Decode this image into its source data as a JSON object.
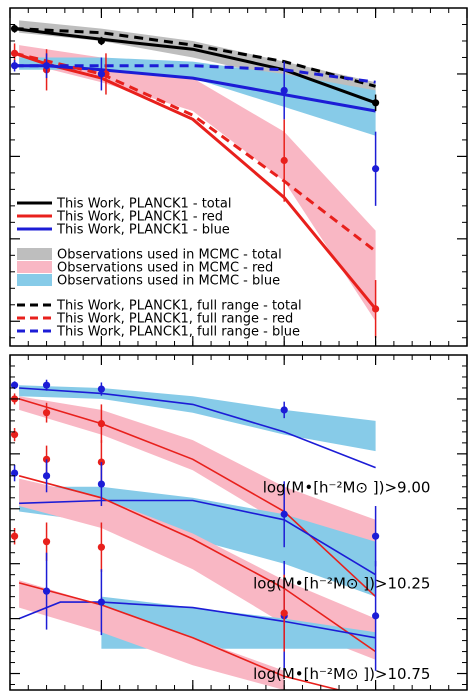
{
  "colors": {
    "total": "#000000",
    "red": "#e8201c",
    "blue": "#1c1cd6",
    "band_total": "#bebebe",
    "band_red": "#f9b7c4",
    "band_blue": "#87cbe8"
  },
  "chart_data": [
    {
      "type": "line",
      "panel": "top",
      "xlim": [
        0.0,
        5.0
      ],
      "ylim": [
        -5.3,
        -1.2
      ],
      "x_ticks": [
        0.0,
        1.0,
        2.0,
        3.0,
        4.0,
        5.0
      ],
      "grid": false,
      "legend_position": "bottom-left",
      "legend": [
        {
          "label": "This Work, PLANCK1 - total",
          "kind": "line",
          "color": "#000000",
          "dash": false
        },
        {
          "label": "This Work, PLANCK1 - red",
          "kind": "line",
          "color": "#e8201c",
          "dash": false
        },
        {
          "label": "This Work, PLANCK1 - blue",
          "kind": "line",
          "color": "#1c1cd6",
          "dash": false
        },
        {
          "label": "Observations used in MCMC - total",
          "kind": "band",
          "color": "#bebebe"
        },
        {
          "label": "Observations used in MCMC - red",
          "kind": "band",
          "color": "#f9b7c4"
        },
        {
          "label": "Observations used in MCMC - blue",
          "kind": "band",
          "color": "#87cbe8"
        },
        {
          "label": "This Work, PLANCK1, full range - total",
          "kind": "line",
          "color": "#000000",
          "dash": true
        },
        {
          "label": "This Work, PLANCK1, full range - red",
          "kind": "line",
          "color": "#e8201c",
          "dash": true
        },
        {
          "label": "This Work, PLANCK1, full range - blue",
          "kind": "line",
          "color": "#1c1cd6",
          "dash": true
        }
      ],
      "bands": [
        {
          "name": "total",
          "color": "#bebebe",
          "x": [
            0.1,
            1.0,
            2.0,
            3.0,
            4.0
          ],
          "low": [
            -1.5,
            -1.6,
            -1.8,
            -2.05,
            -2.4
          ],
          "high": [
            -1.35,
            -1.45,
            -1.6,
            -1.85,
            -2.1
          ]
        },
        {
          "name": "red",
          "color": "#f9b7c4",
          "x": [
            0.1,
            1.0,
            2.0,
            3.0,
            4.0
          ],
          "low": [
            -1.85,
            -2.1,
            -2.45,
            -3.3,
            -5.0
          ],
          "high": [
            -1.65,
            -1.8,
            -2.05,
            -2.7,
            -3.9
          ]
        },
        {
          "name": "blue",
          "color": "#87cbe8",
          "x": [
            0.1,
            1.0,
            2.0,
            3.0,
            4.0
          ],
          "low": [
            -1.95,
            -1.95,
            -2.05,
            -2.4,
            -2.75
          ],
          "high": [
            -1.8,
            -1.8,
            -1.85,
            -2.0,
            -2.2
          ]
        }
      ],
      "series": [
        {
          "name": "This Work, PLANCK1 - total",
          "color": "#000000",
          "dash": false,
          "x": [
            0.05,
            0.4,
            1.0,
            2.0,
            3.0,
            4.0
          ],
          "y": [
            -1.45,
            -1.5,
            -1.58,
            -1.7,
            -1.95,
            -2.35
          ]
        },
        {
          "name": "This Work, PLANCK1 - red",
          "color": "#e8201c",
          "dash": false,
          "x": [
            0.05,
            0.4,
            1.0,
            2.0,
            3.0,
            4.0
          ],
          "y": [
            -1.75,
            -1.88,
            -2.05,
            -2.55,
            -3.5,
            -4.85
          ]
        },
        {
          "name": "This Work, PLANCK1 - blue",
          "color": "#1c1cd6",
          "dash": false,
          "x": [
            0.05,
            0.4,
            1.0,
            2.0,
            3.0,
            4.0
          ],
          "y": [
            -1.9,
            -1.9,
            -1.95,
            -2.05,
            -2.25,
            -2.45
          ]
        },
        {
          "name": "This Work, PLANCK1, full range - total",
          "color": "#000000",
          "dash": true,
          "x": [
            0.05,
            1.0,
            2.0,
            3.0,
            4.0
          ],
          "y": [
            -1.45,
            -1.5,
            -1.65,
            -1.85,
            -2.15
          ]
        },
        {
          "name": "This Work, PLANCK1, full range - red",
          "color": "#e8201c",
          "dash": true,
          "x": [
            0.05,
            1.0,
            2.0,
            3.0,
            4.0
          ],
          "y": [
            -1.75,
            -2.0,
            -2.5,
            -3.3,
            -4.15
          ]
        },
        {
          "name": "This Work, PLANCK1, full range - blue",
          "color": "#1c1cd6",
          "dash": true,
          "x": [
            0.05,
            1.0,
            2.0,
            3.0,
            4.0
          ],
          "y": [
            -1.9,
            -1.9,
            -1.9,
            -1.95,
            -2.1
          ]
        }
      ],
      "points": [
        {
          "color": "#000000",
          "x": [
            0.05,
            1.0,
            4.0
          ],
          "y": [
            -1.45,
            -1.6,
            -2.35
          ],
          "err": [
            0.05,
            0.05,
            0.1
          ]
        },
        {
          "color": "#e8201c",
          "x": [
            0.05,
            0.4,
            1.05,
            3.0,
            4.0
          ],
          "y": [
            -1.75,
            -1.95,
            -2.0,
            -3.05,
            -4.85
          ],
          "err": [
            0.12,
            0.25,
            0.25,
            0.5,
            0.35
          ]
        },
        {
          "color": "#1c1cd6",
          "x": [
            0.05,
            0.4,
            1.0,
            3.0,
            4.0
          ],
          "y": [
            -1.9,
            -1.9,
            -2.0,
            -2.2,
            -3.15
          ],
          "err": [
            0.07,
            0.15,
            0.2,
            0.35,
            0.45
          ]
        }
      ]
    },
    {
      "type": "line",
      "panel": "bottom",
      "xlim": [
        0.0,
        5.0
      ],
      "ylim": [
        -7.3,
        -1.2
      ],
      "x_ticks": [
        0.0,
        1.0,
        2.0,
        3.0,
        4.0,
        5.0
      ],
      "grid": false,
      "annotations": [
        {
          "text": "log(M•[h⁻²M⊙ ])>9.00",
          "x": 4.6,
          "y": -3.7
        },
        {
          "text": "log(M•[h⁻²M⊙ ])>10.25",
          "x": 4.6,
          "y": -5.45
        },
        {
          "text": "log(M•[h⁻²M⊙ ])>10.75",
          "x": 4.6,
          "y": -7.1
        }
      ],
      "bands": [
        {
          "name": "blue >9.00",
          "color": "#87cbe8",
          "x": [
            0.1,
            1.0,
            2.0,
            3.0,
            4.0
          ],
          "low": [
            -1.95,
            -2.0,
            -2.25,
            -2.65,
            -2.95
          ],
          "high": [
            -1.75,
            -1.8,
            -1.95,
            -2.2,
            -2.4
          ]
        },
        {
          "name": "red >9.00",
          "color": "#f9b7c4",
          "x": [
            0.1,
            1.0,
            2.0,
            3.0,
            4.0
          ],
          "low": [
            -2.2,
            -2.65,
            -3.3,
            -4.3,
            -5.0
          ],
          "high": [
            -1.95,
            -2.2,
            -2.75,
            -3.6,
            -4.2
          ]
        },
        {
          "name": "blue >10.25",
          "color": "#87cbe8",
          "x": [
            0.1,
            1.0,
            2.0,
            3.0,
            4.0
          ],
          "low": [
            -4.05,
            -4.25,
            -4.55,
            -5.0,
            -5.6
          ],
          "high": [
            -3.6,
            -3.6,
            -3.8,
            -4.1,
            -4.6
          ]
        },
        {
          "name": "red >10.25",
          "color": "#f9b7c4",
          "x": [
            0.1,
            1.0,
            2.0,
            3.0,
            4.0
          ],
          "low": [
            -3.95,
            -4.35,
            -5.1,
            -6.1,
            -6.75
          ],
          "high": [
            -3.45,
            -3.8,
            -4.45,
            -5.3,
            -6.0
          ]
        },
        {
          "name": "blue >10.75",
          "color": "#87cbe8",
          "x": [
            1.0,
            2.0,
            3.0,
            4.0
          ],
          "low": [
            -6.55,
            -6.55,
            -6.55,
            -6.55
          ],
          "high": [
            -5.6,
            -5.8,
            -6.0,
            -6.25
          ]
        },
        {
          "name": "red >10.75",
          "color": "#f9b7c4",
          "x": [
            0.1,
            1.0,
            2.0,
            3.0
          ],
          "low": [
            -5.8,
            -6.25,
            -6.85,
            -7.3
          ],
          "high": [
            -5.3,
            -5.75,
            -6.35,
            -6.95
          ]
        }
      ],
      "series": [
        {
          "name": "blue >9.00",
          "color": "#1c1cd6",
          "x": [
            0.1,
            1.0,
            2.0,
            3.0,
            4.0
          ],
          "y": [
            -1.8,
            -1.9,
            -2.1,
            -2.6,
            -3.25
          ]
        },
        {
          "name": "red >9.00",
          "color": "#e8201c",
          "x": [
            0.1,
            1.0,
            2.0,
            3.0,
            4.0
          ],
          "y": [
            -2.0,
            -2.45,
            -3.1,
            -4.05,
            -5.6
          ]
        },
        {
          "name": "blue >10.25",
          "color": "#1c1cd6",
          "x": [
            0.1,
            1.0,
            2.0,
            3.0,
            4.0
          ],
          "y": [
            -3.9,
            -3.85,
            -3.85,
            -4.2,
            -5.2
          ]
        },
        {
          "name": "red >10.25",
          "color": "#e8201c",
          "x": [
            0.1,
            1.0,
            2.0,
            3.0,
            4.0
          ],
          "y": [
            -3.4,
            -3.8,
            -4.55,
            -5.45,
            -6.6
          ]
        },
        {
          "name": "blue >10.75",
          "color": "#1c1cd6",
          "x": [
            0.1,
            0.55,
            1.0,
            2.0,
            3.0,
            4.0
          ],
          "y": [
            -6.0,
            -5.7,
            -5.7,
            -5.8,
            -6.05,
            -6.35
          ]
        },
        {
          "name": "red >10.75",
          "color": "#e8201c",
          "x": [
            0.1,
            1.0,
            2.0,
            3.0,
            3.6
          ],
          "y": [
            -5.35,
            -5.75,
            -6.35,
            -7.05,
            -7.3
          ]
        }
      ],
      "points": [
        {
          "color": "#1c1cd6",
          "x": [
            0.05,
            0.4,
            1.0,
            3.0
          ],
          "y": [
            -1.75,
            -1.75,
            -1.82,
            -2.2
          ],
          "err": [
            0.07,
            0.1,
            0.12,
            0.15
          ]
        },
        {
          "color": "#e8201c",
          "x": [
            0.05,
            0.4,
            1.0
          ],
          "y": [
            -2.0,
            -2.25,
            -2.45
          ],
          "err": [
            0.1,
            0.18,
            0.35
          ]
        },
        {
          "color": "#e8201c",
          "x": [
            0.05,
            0.4,
            1.0
          ],
          "y": [
            -2.65,
            -3.1,
            -3.15
          ],
          "err": [
            0.12,
            0.25,
            0.4
          ]
        },
        {
          "color": "#1c1cd6",
          "x": [
            0.05,
            0.4,
            1.0,
            3.0,
            4.0
          ],
          "y": [
            -3.35,
            -3.4,
            -3.55,
            -4.1,
            -4.5
          ],
          "err": [
            0.15,
            0.3,
            0.4,
            0.6,
            0.55
          ]
        },
        {
          "color": "#e8201c",
          "x": [
            0.05,
            0.4,
            1.0
          ],
          "y": [
            -4.5,
            -4.6,
            -4.7
          ],
          "err": [
            0.15,
            0.35,
            0.45
          ]
        },
        {
          "color": "#1c1cd6",
          "x": [
            0.4,
            1.0,
            3.0,
            4.0
          ],
          "y": [
            -5.5,
            -5.7,
            -5.95,
            -5.95
          ],
          "err": [
            0.7,
            0.6,
            1.0,
            1.0
          ]
        },
        {
          "color": "#e8201c",
          "x": [
            3.0
          ],
          "y": [
            -5.9
          ],
          "err": [
            0.7
          ]
        }
      ]
    }
  ]
}
